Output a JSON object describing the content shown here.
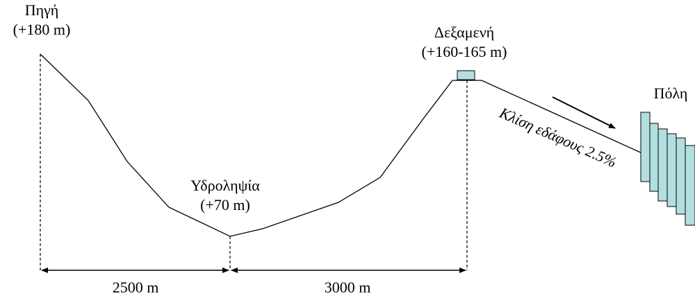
{
  "source": {
    "name": "Πηγή",
    "elevation": "(+180 m)"
  },
  "intake": {
    "name": "Υδροληψία",
    "elevation": "(+70 m)"
  },
  "reservoir": {
    "name": "Δεξαμενή",
    "elevation": "(+160-165 m)"
  },
  "city": {
    "name": "Πόλη"
  },
  "slope_label": "Κλίση εδάφους 2.5%",
  "distances": [
    "2500 m",
    "3000 m"
  ]
}
